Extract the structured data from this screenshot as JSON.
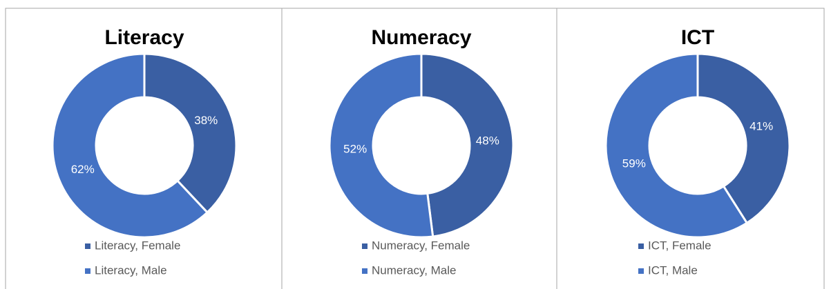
{
  "chart_data": [
    {
      "type": "donut",
      "title": "Literacy",
      "categories": [
        "Literacy, Female",
        "Literacy, Male"
      ],
      "values": [
        38,
        62
      ],
      "value_labels": [
        "38%",
        "62%"
      ],
      "colors": [
        "#3a5fa3",
        "#4472c4"
      ]
    },
    {
      "type": "donut",
      "title": "Numeracy",
      "categories": [
        "Numeracy, Female",
        "Numeracy, Male"
      ],
      "values": [
        48,
        52
      ],
      "value_labels": [
        "48%",
        "52%"
      ],
      "colors": [
        "#3a5fa3",
        "#4472c4"
      ]
    },
    {
      "type": "donut",
      "title": "ICT",
      "categories": [
        "ICT, Female",
        "ICT, Male"
      ],
      "values": [
        41,
        59
      ],
      "value_labels": [
        "41%",
        "59%"
      ],
      "colors": [
        "#3a5fa3",
        "#4472c4"
      ]
    }
  ]
}
